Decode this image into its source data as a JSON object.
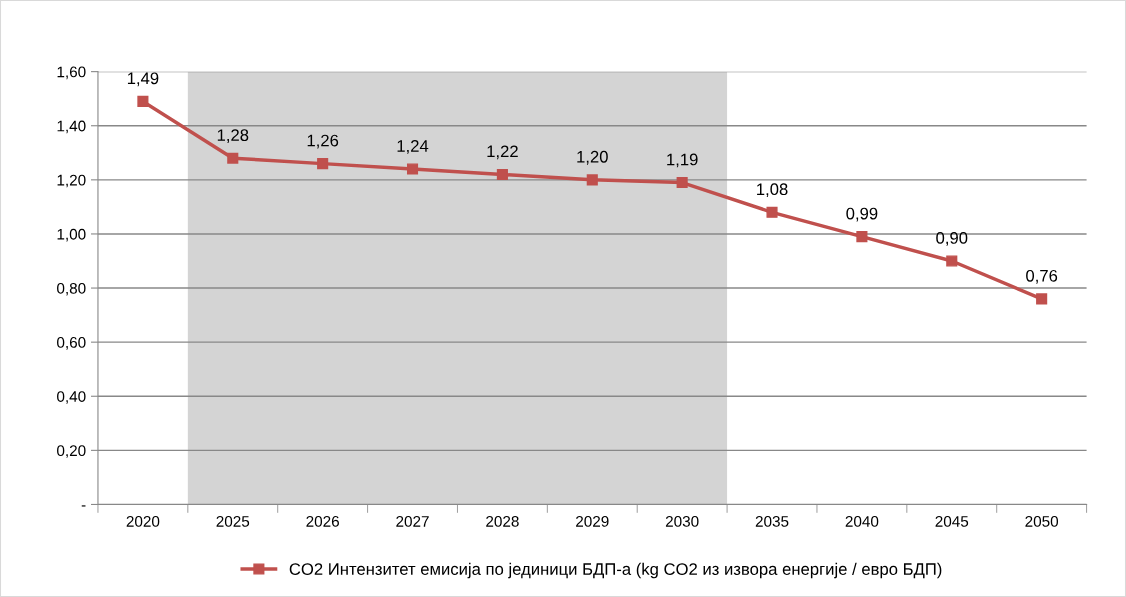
{
  "chart_data": {
    "type": "line",
    "categories": [
      "2020",
      "2025",
      "2026",
      "2027",
      "2028",
      "2029",
      "2030",
      "2035",
      "2040",
      "2045",
      "2050"
    ],
    "series": [
      {
        "name": "CO2 Интензитет емисија по јединици БДП-а (kg CO2 из извора енергије / евро БДП)",
        "color": "#c0504d",
        "values": [
          1.49,
          1.28,
          1.26,
          1.24,
          1.22,
          1.2,
          1.19,
          1.08,
          0.99,
          0.9,
          0.76
        ],
        "value_labels": [
          "1,49",
          "1,28",
          "1,26",
          "1,24",
          "1,22",
          "1,20",
          "1,19",
          "1,08",
          "0,99",
          "0,90",
          "0,76"
        ]
      }
    ],
    "ylim": [
      0,
      1.6
    ],
    "yticks": [
      {
        "value": 0,
        "label": "-"
      },
      {
        "value": 0.2,
        "label": "0,20"
      },
      {
        "value": 0.4,
        "label": "0,40"
      },
      {
        "value": 0.6,
        "label": "0,60"
      },
      {
        "value": 0.8,
        "label": "0,80"
      },
      {
        "value": 1.0,
        "label": "1,00"
      },
      {
        "value": 1.2,
        "label": "1,20"
      },
      {
        "value": 1.4,
        "label": "1,40"
      },
      {
        "value": 1.6,
        "label": "1,60"
      }
    ],
    "bands": [
      {
        "axis": "x",
        "from": "2025",
        "to": "2030",
        "color": "#d4d4d4"
      }
    ],
    "grid": "y",
    "legend": "bottom",
    "marker": "square",
    "line_style": "solid"
  }
}
